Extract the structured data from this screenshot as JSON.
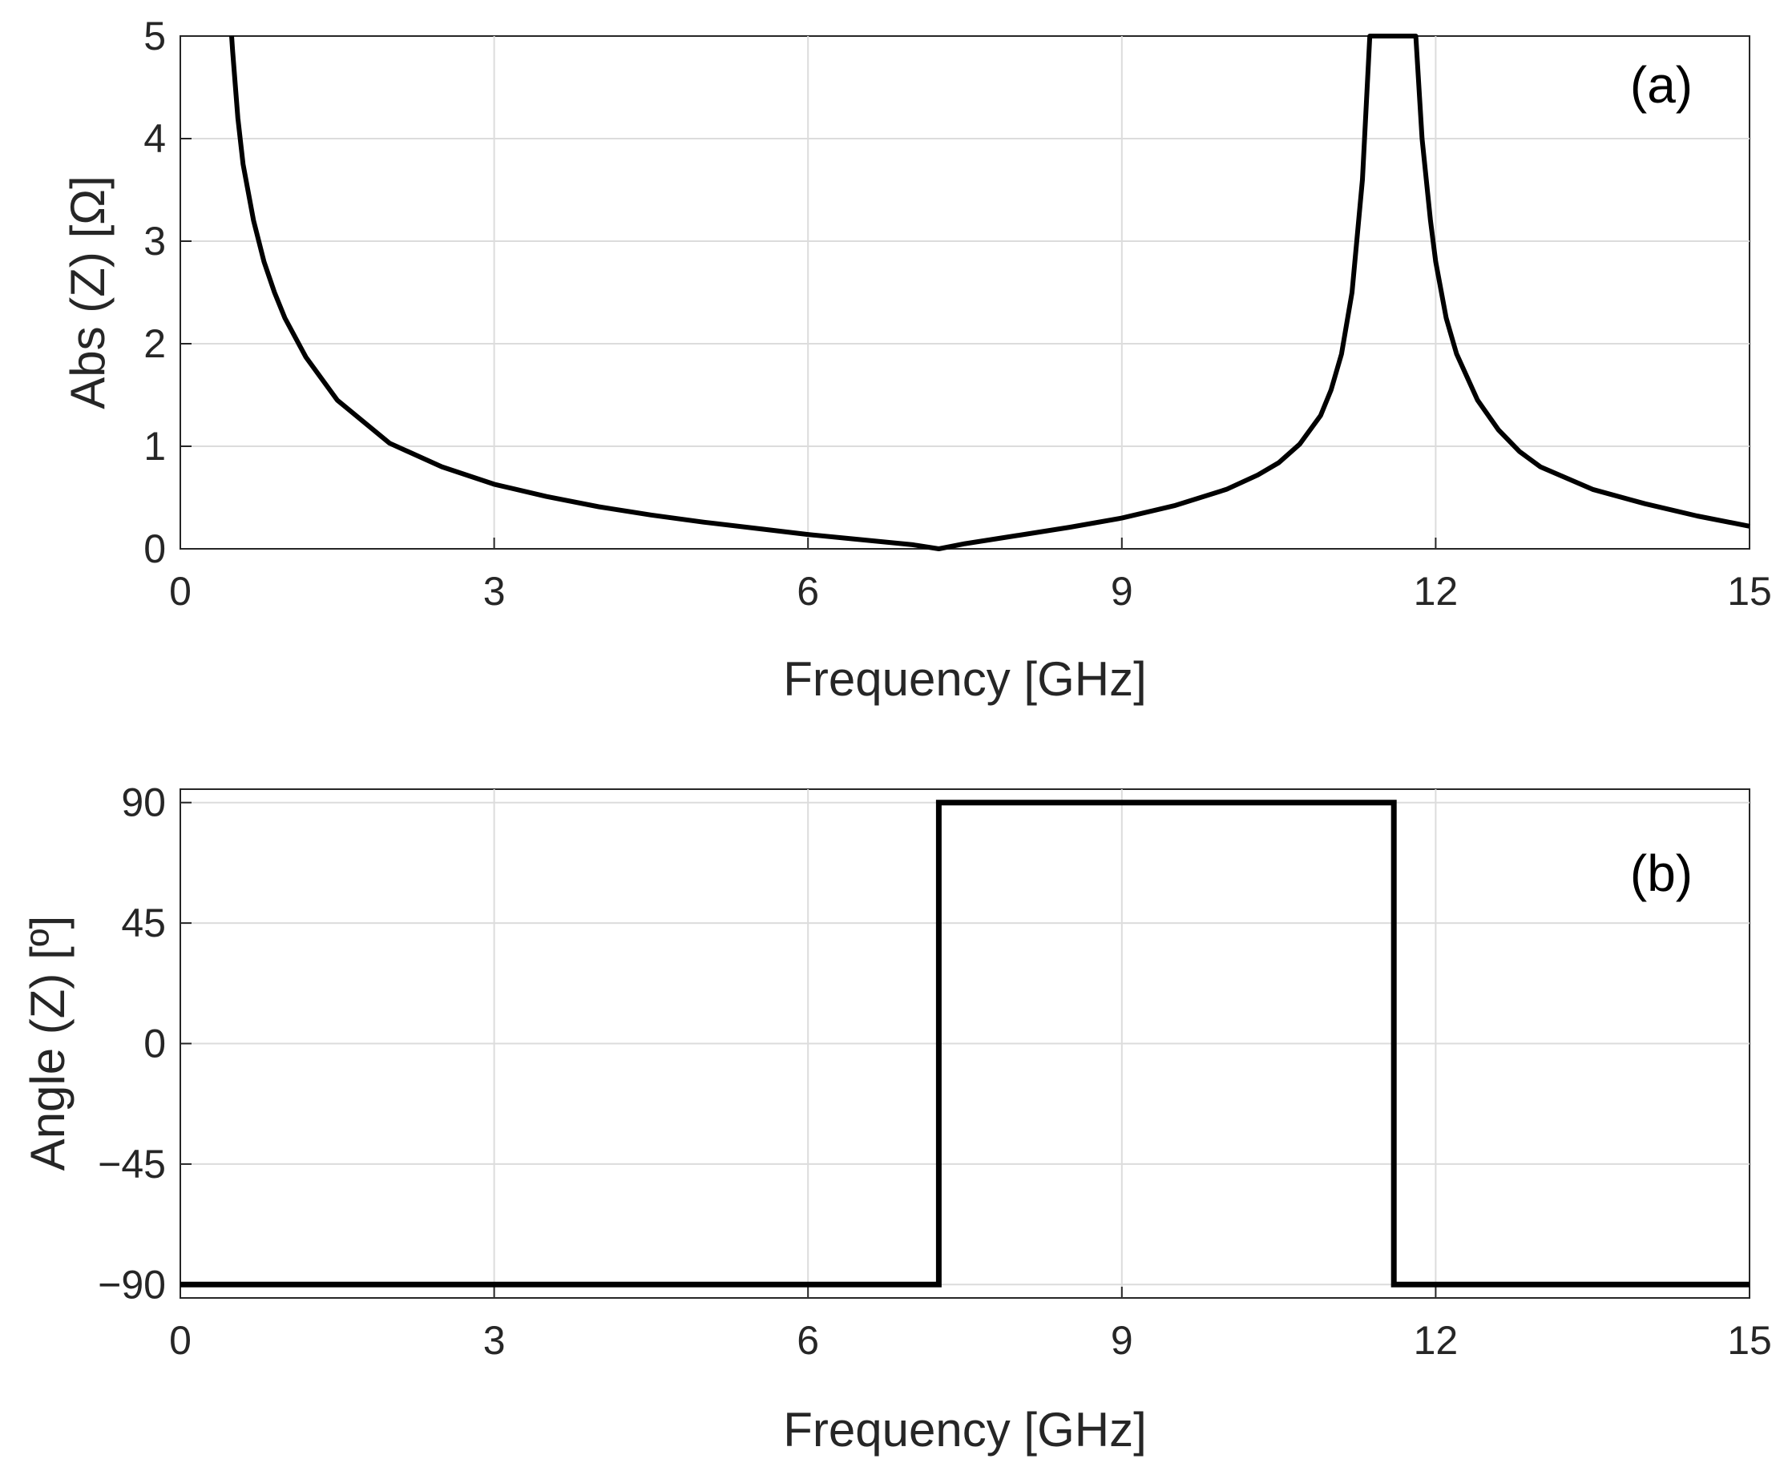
{
  "chart_data": [
    {
      "type": "line",
      "panel_label": "(a)",
      "xlabel": "Frequency [GHz]",
      "ylabel": "Abs (Z) [Ω]",
      "xlim": [
        0,
        15
      ],
      "ylim": [
        0,
        5
      ],
      "xticks": [
        "0",
        "3",
        "6",
        "9",
        "12",
        "15"
      ],
      "yticks": [
        "0",
        "1",
        "2",
        "3",
        "4",
        "5"
      ],
      "grid": true,
      "line_color": "#000000",
      "series": [
        {
          "x": [
            0.49,
            0.5,
            0.55,
            0.6,
            0.7,
            0.8,
            0.9,
            1.0,
            1.2,
            1.5,
            2.0,
            2.5,
            3.0,
            3.5,
            4.0,
            4.5,
            5.0,
            5.5,
            6.0,
            6.5,
            7.0,
            7.25,
            7.5,
            8.0,
            8.5,
            9.0,
            9.5,
            10.0,
            10.3,
            10.5,
            10.7,
            10.9,
            11.0,
            11.1,
            11.2,
            11.3,
            11.37,
            11.81,
            11.87,
            11.95,
            12.0,
            12.1,
            12.2,
            12.4,
            12.6,
            12.8,
            13.0,
            13.5,
            14.0,
            14.5,
            15.0
          ],
          "y": [
            5.0,
            4.85,
            4.2,
            3.75,
            3.2,
            2.8,
            2.5,
            2.25,
            1.87,
            1.45,
            1.03,
            0.8,
            0.63,
            0.51,
            0.41,
            0.33,
            0.26,
            0.2,
            0.14,
            0.09,
            0.04,
            0.0,
            0.05,
            0.13,
            0.21,
            0.3,
            0.42,
            0.58,
            0.72,
            0.84,
            1.02,
            1.3,
            1.55,
            1.9,
            2.5,
            3.6,
            5.0,
            5.0,
            4.0,
            3.2,
            2.8,
            2.25,
            1.9,
            1.45,
            1.16,
            0.95,
            0.8,
            0.58,
            0.44,
            0.32,
            0.22
          ]
        }
      ]
    },
    {
      "type": "line",
      "panel_label": "(b)",
      "xlabel": "Frequency [GHz]",
      "ylabel": "Angle (Z) [º]",
      "xlim": [
        0,
        15
      ],
      "ylim": [
        -95,
        95
      ],
      "xticks": [
        "0",
        "3",
        "6",
        "9",
        "12",
        "15"
      ],
      "yticks": [
        "−90",
        "−45",
        "0",
        "45",
        "90"
      ],
      "ytick_values": [
        -90,
        -45,
        0,
        45,
        90
      ],
      "grid": true,
      "line_color": "#000000",
      "series": [
        {
          "x": [
            0,
            7.25,
            7.25,
            11.6,
            11.6,
            15
          ],
          "y": [
            -90,
            -90,
            90,
            90,
            -90,
            -90
          ]
        }
      ]
    }
  ]
}
